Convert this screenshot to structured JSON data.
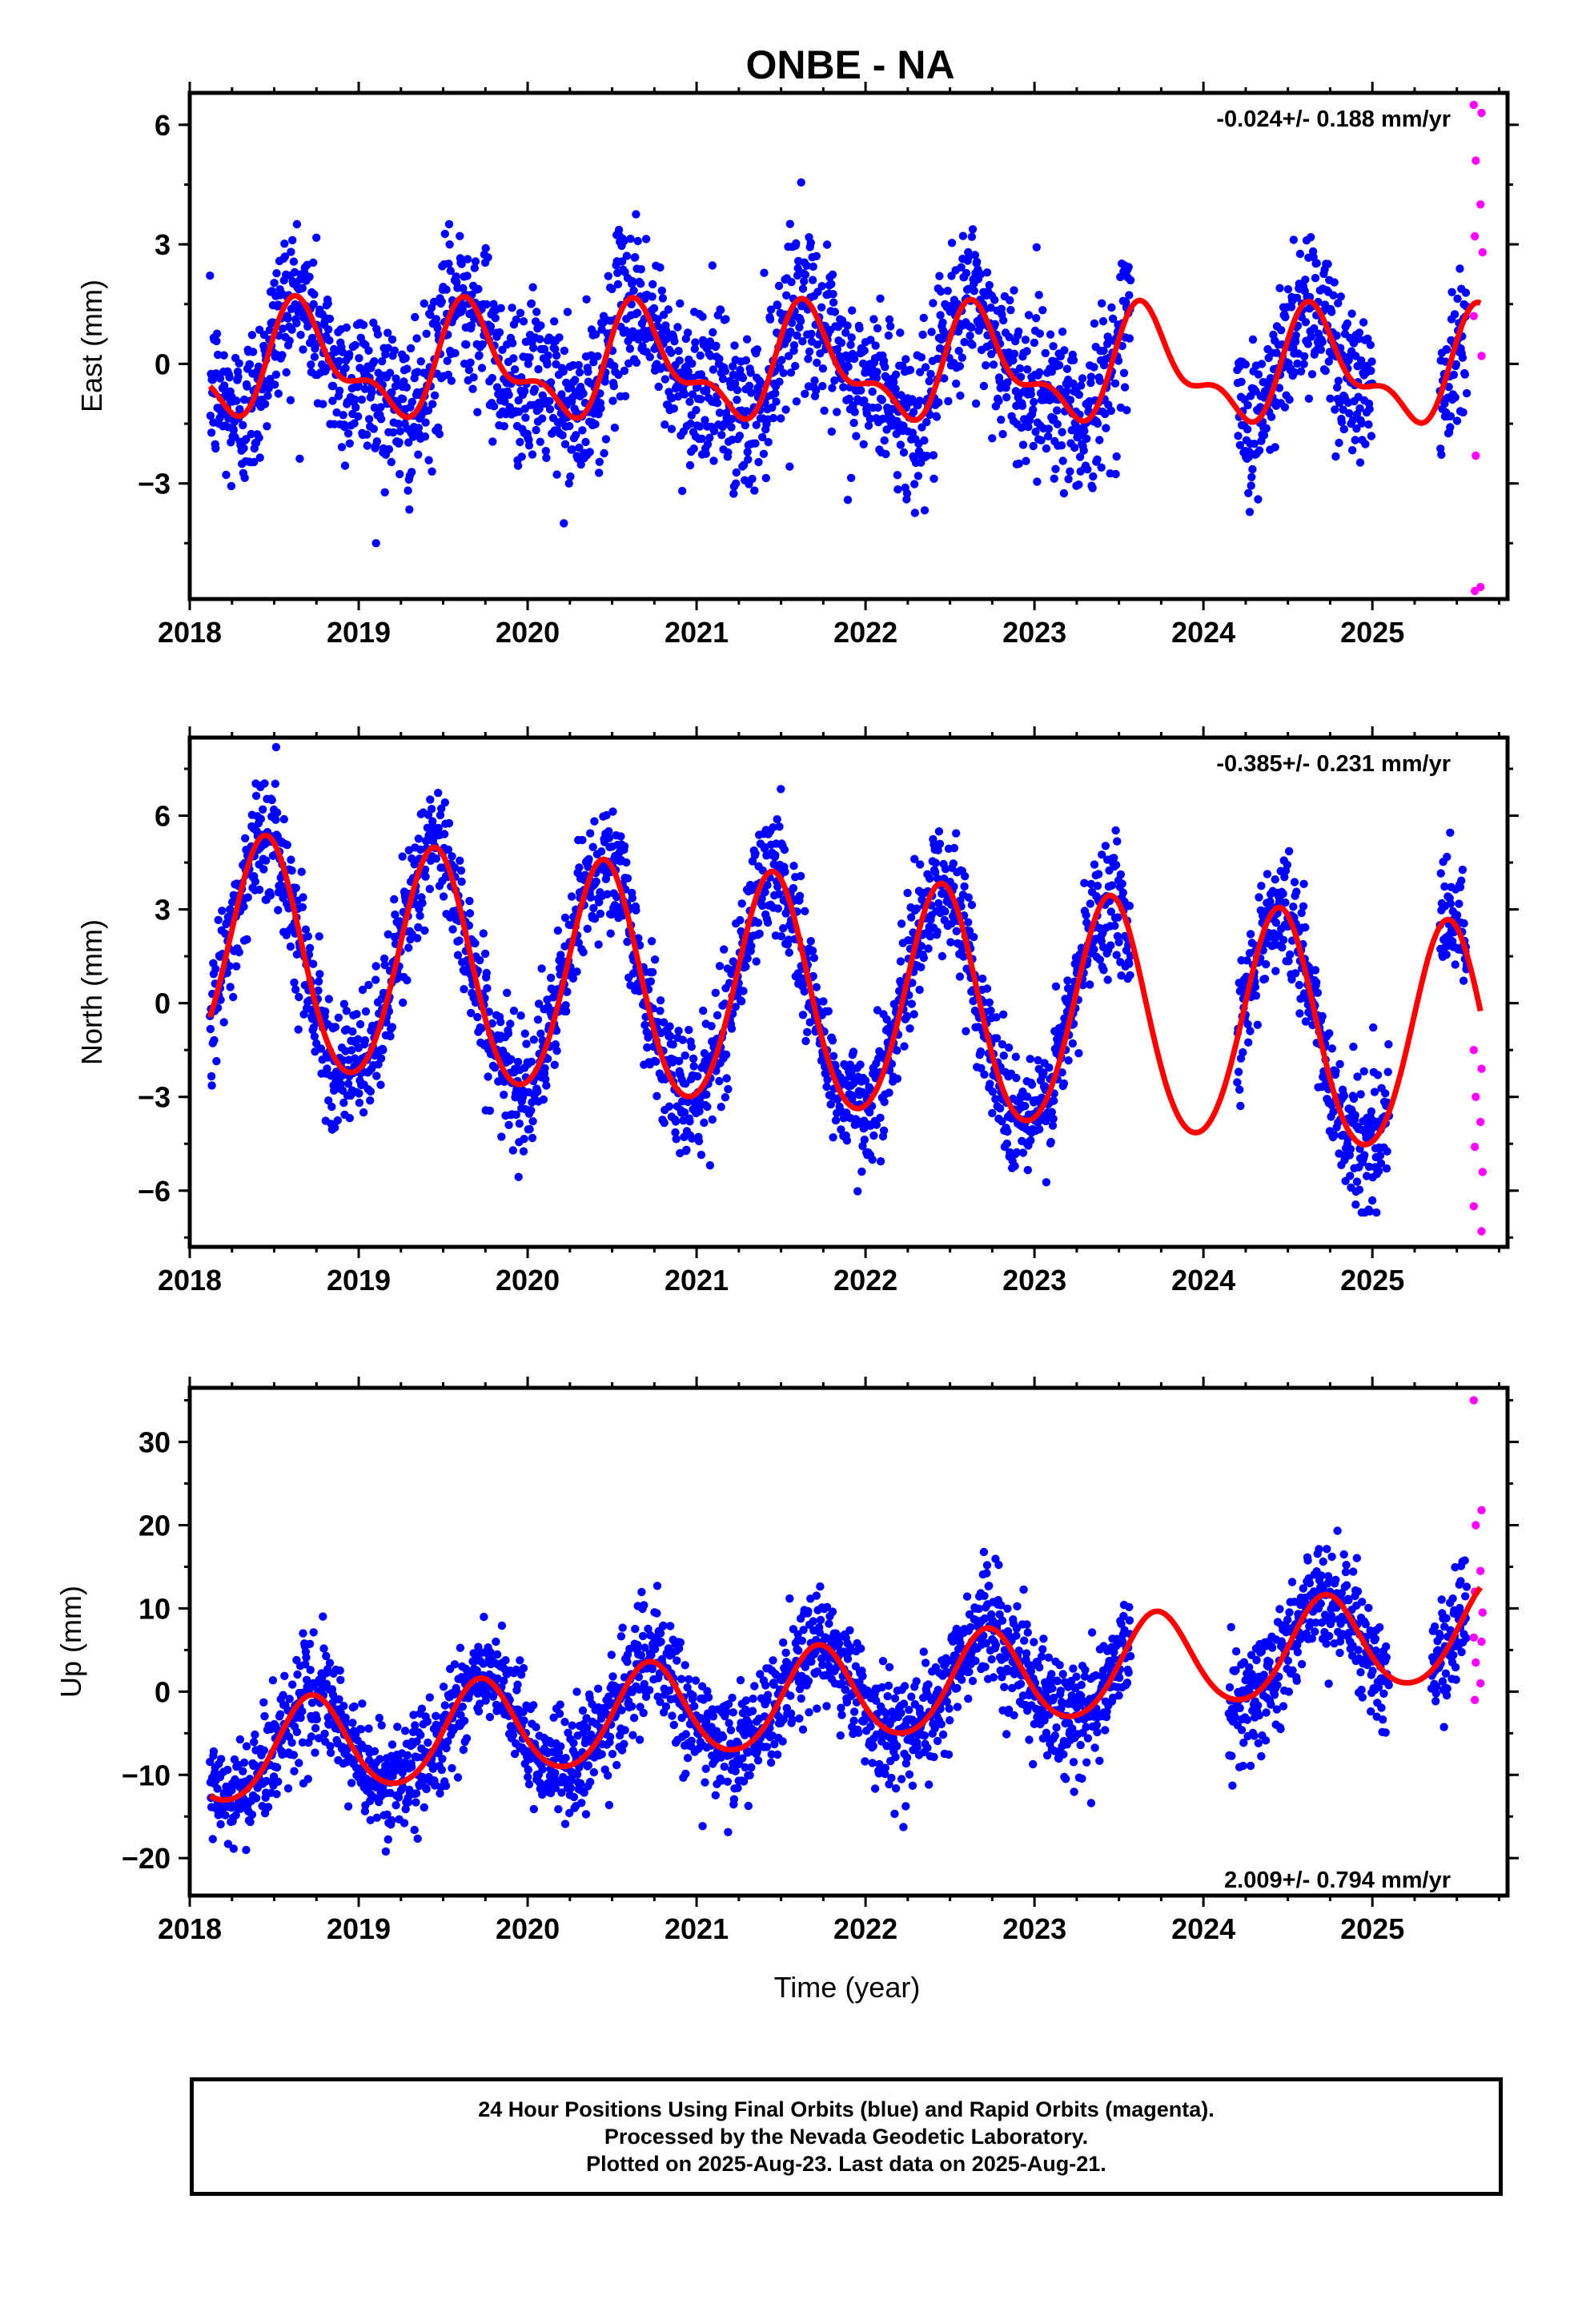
{
  "title": "ONBE - NA",
  "colors": {
    "final_orbits": "#0000ff",
    "rapid_orbits": "#ff00ff",
    "model_fit": "#ff0000",
    "frame": "#000000"
  },
  "xlabel": "Time (year)",
  "footer": {
    "line1": "24 Hour Positions Using Final Orbits (blue) and Rapid Orbits (magenta).",
    "line2": "Processed by the Nevada Geodetic Laboratory.",
    "line3": "Plotted on 2025-Aug-23. Last data on 2025-Aug-21."
  },
  "chart_data": [
    {
      "type": "scatter",
      "component": "east",
      "ylabel": "East (mm)",
      "rate_text": "-0.024+/- 0.188 mm/yr",
      "xlim": [
        2018.0,
        2025.8
      ],
      "ylim": [
        -5.9,
        6.8
      ],
      "x_ticks": [
        2018,
        2019,
        2020,
        2021,
        2022,
        2023,
        2024,
        2025
      ],
      "y_ticks": [
        -3,
        0,
        3,
        6
      ],
      "grid": false,
      "series": [
        {
          "name": "Final Orbits",
          "color": "#0000ff",
          "data_spans": [
            [
              2018.12,
              2023.57
            ],
            [
              2024.2,
              2025.0
            ],
            [
              2025.4,
              2025.56
            ]
          ],
          "approx_noise_sd": 1.0,
          "approx_range": [
            -4.5,
            5.0
          ]
        },
        {
          "name": "Rapid Orbits",
          "color": "#ff00ff",
          "x_range": [
            2025.6,
            2025.64
          ],
          "values": [
            6.5,
            6.3,
            5.1,
            4.0,
            3.2,
            2.8,
            1.2,
            0.2,
            -2.3,
            -5.6,
            -5.7
          ]
        }
      ],
      "fit": {
        "type": "trend_plus_seasonal",
        "offset": 0.0,
        "rate": -0.024,
        "annual_amp": 1.2,
        "annual_peak": 0.67,
        "semiannual_amp": 0.6,
        "semiannual_peak": 0.6
      }
    },
    {
      "type": "scatter",
      "component": "north",
      "ylabel": "North (mm)",
      "rate_text": "-0.385+/- 0.231 mm/yr",
      "xlim": [
        2018.0,
        2025.8
      ],
      "ylim": [
        -7.8,
        8.5
      ],
      "x_ticks": [
        2018,
        2019,
        2020,
        2021,
        2022,
        2023,
        2024,
        2025
      ],
      "y_ticks": [
        -6,
        -3,
        0,
        3,
        6
      ],
      "grid": false,
      "series": [
        {
          "name": "Final Orbits",
          "color": "#0000ff",
          "data_spans": [
            [
              2018.12,
              2023.57
            ],
            [
              2024.2,
              2025.1
            ],
            [
              2025.4,
              2025.56
            ]
          ],
          "approx_noise_sd": 1.0,
          "approx_range": [
            -6.7,
            8.3
          ]
        },
        {
          "name": "Rapid Orbits",
          "color": "#ff00ff",
          "x_range": [
            2025.6,
            2025.64
          ],
          "values": [
            -1.5,
            -2.1,
            -3.0,
            -3.8,
            -4.6,
            -5.4,
            -6.5,
            -7.3
          ]
        }
      ],
      "fit": {
        "type": "trend_plus_seasonal",
        "offset": 1.5,
        "rate": -0.385,
        "annual_amp": 3.7,
        "annual_peak": 0.45,
        "semiannual_amp": 0.3,
        "semiannual_peak": 0.45
      }
    },
    {
      "type": "scatter",
      "component": "up",
      "ylabel": "Up (mm)",
      "rate_text": "2.009+/- 0.794 mm/yr",
      "xlim": [
        2018.0,
        2025.8
      ],
      "ylim": [
        -24.5,
        36.5
      ],
      "x_ticks": [
        2018,
        2019,
        2020,
        2021,
        2022,
        2023,
        2024,
        2025
      ],
      "y_ticks": [
        -20,
        -10,
        0,
        10,
        20,
        30
      ],
      "grid": false,
      "series": [
        {
          "name": "Final Orbits",
          "color": "#0000ff",
          "data_spans": [
            [
              2018.12,
              2023.57
            ],
            [
              2024.15,
              2025.1
            ],
            [
              2025.35,
              2025.56
            ]
          ],
          "approx_noise_sd": 3.3,
          "approx_range": [
            -23.0,
            23.0
          ]
        },
        {
          "name": "Rapid Orbits",
          "color": "#ff00ff",
          "x_range": [
            2025.6,
            2025.64
          ],
          "values": [
            35.0,
            21.8,
            20.0,
            14.5,
            12.0,
            9.5,
            6.5,
            6.0,
            3.5,
            1.0,
            -1.0
          ]
        }
      ],
      "fit": {
        "type": "trend_plus_seasonal",
        "offset": -8.0,
        "rate": 2.009,
        "annual_amp": 5.8,
        "annual_peak": 0.72,
        "semiannual_amp": 0.6,
        "semiannual_peak": 0.72
      }
    }
  ]
}
